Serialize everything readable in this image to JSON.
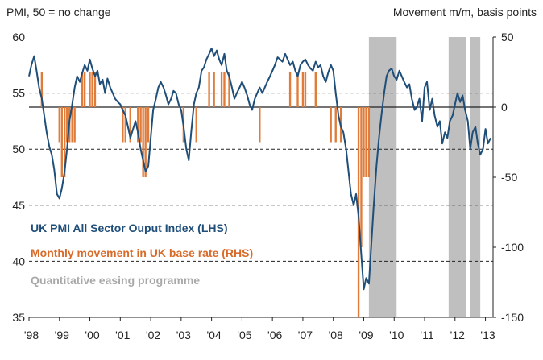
{
  "chart_data": {
    "type": "line",
    "left_axis_title": "PMI, 50 = no change",
    "right_axis_title": "Movement m/m, basis points",
    "left_ylim": [
      35,
      60
    ],
    "left_ticks": [
      "35",
      "40",
      "45",
      "50",
      "55",
      "60"
    ],
    "right_ylim": [
      -150,
      50
    ],
    "right_ticks": [
      "-150",
      "-100",
      "-50",
      "0",
      "50"
    ],
    "x_range": [
      1998.0,
      2013.25
    ],
    "x_ticks": [
      "'98",
      "'99",
      "'00",
      "'01",
      "'02",
      "'03",
      "'04",
      "'05",
      "'06",
      "'07",
      "'08",
      "'09",
      "'10",
      "'11",
      "'12",
      "'13"
    ],
    "gridlines_left": [
      40,
      45,
      50,
      55
    ],
    "zero_line_right": 0,
    "legend": {
      "items": [
        "UK PMI All Sector Ouput Index (LHS)",
        "Monthly movement in UK base rate (RHS)",
        "Quantitative easing programme"
      ]
    },
    "colors": {
      "pmi_line": "#1f4e79",
      "base_rate_bars": "#e07b39",
      "qe_shading": "#bfbfbf",
      "axis_text": "#222222",
      "legend_pmi": "#1f4e79",
      "legend_rate": "#d96b2a",
      "legend_qe": "#a8a8a8"
    },
    "qe_periods": [
      [
        2009.17,
        2010.08
      ],
      [
        2011.79,
        2012.35
      ],
      [
        2012.5,
        2012.83
      ]
    ],
    "series": [
      {
        "axis": "left",
        "points": [
          [
            1998.0,
            56.5
          ],
          [
            1998.08,
            57.5
          ],
          [
            1998.17,
            58.3
          ],
          [
            1998.25,
            57.0
          ],
          [
            1998.33,
            55.5
          ],
          [
            1998.42,
            54.5
          ],
          [
            1998.5,
            53.0
          ],
          [
            1998.58,
            51.5
          ],
          [
            1998.67,
            50.2
          ],
          [
            1998.75,
            49.5
          ],
          [
            1998.83,
            48.2
          ],
          [
            1998.92,
            46.0
          ],
          [
            1999.0,
            45.6
          ],
          [
            1999.08,
            46.5
          ],
          [
            1999.17,
            48.0
          ],
          [
            1999.25,
            50.0
          ],
          [
            1999.33,
            52.5
          ],
          [
            1999.42,
            54.0
          ],
          [
            1999.5,
            55.5
          ],
          [
            1999.58,
            56.5
          ],
          [
            1999.67,
            56.0
          ],
          [
            1999.75,
            56.8
          ],
          [
            1999.83,
            57.5
          ],
          [
            1999.92,
            57.0
          ],
          [
            2000.0,
            58.0
          ],
          [
            2000.08,
            57.2
          ],
          [
            2000.17,
            56.5
          ],
          [
            2000.25,
            57.0
          ],
          [
            2000.33,
            55.8
          ],
          [
            2000.42,
            56.2
          ],
          [
            2000.5,
            55.0
          ],
          [
            2000.58,
            56.3
          ],
          [
            2000.67,
            55.5
          ],
          [
            2000.75,
            55.0
          ],
          [
            2000.83,
            54.5
          ],
          [
            2000.92,
            54.2
          ],
          [
            2001.0,
            54.0
          ],
          [
            2001.08,
            53.5
          ],
          [
            2001.17,
            53.0
          ],
          [
            2001.25,
            52.0
          ],
          [
            2001.33,
            51.0
          ],
          [
            2001.42,
            51.8
          ],
          [
            2001.5,
            52.5
          ],
          [
            2001.58,
            51.5
          ],
          [
            2001.67,
            50.0
          ],
          [
            2001.75,
            49.0
          ],
          [
            2001.83,
            48.0
          ],
          [
            2001.92,
            48.5
          ],
          [
            2002.0,
            51.0
          ],
          [
            2002.08,
            53.5
          ],
          [
            2002.17,
            54.5
          ],
          [
            2002.25,
            55.5
          ],
          [
            2002.33,
            56.0
          ],
          [
            2002.42,
            55.5
          ],
          [
            2002.5,
            54.8
          ],
          [
            2002.58,
            54.0
          ],
          [
            2002.67,
            54.5
          ],
          [
            2002.75,
            55.2
          ],
          [
            2002.83,
            55.0
          ],
          [
            2002.92,
            54.0
          ],
          [
            2003.0,
            53.5
          ],
          [
            2003.08,
            52.0
          ],
          [
            2003.17,
            50.0
          ],
          [
            2003.25,
            49.0
          ],
          [
            2003.33,
            51.5
          ],
          [
            2003.42,
            54.0
          ],
          [
            2003.5,
            55.0
          ],
          [
            2003.58,
            55.5
          ],
          [
            2003.67,
            57.0
          ],
          [
            2003.75,
            57.3
          ],
          [
            2003.83,
            58.0
          ],
          [
            2003.92,
            58.5
          ],
          [
            2004.0,
            59.0
          ],
          [
            2004.08,
            58.3
          ],
          [
            2004.17,
            58.8
          ],
          [
            2004.25,
            58.0
          ],
          [
            2004.33,
            57.5
          ],
          [
            2004.42,
            58.5
          ],
          [
            2004.5,
            57.0
          ],
          [
            2004.58,
            56.5
          ],
          [
            2004.67,
            55.5
          ],
          [
            2004.75,
            54.5
          ],
          [
            2004.83,
            55.0
          ],
          [
            2004.92,
            55.5
          ],
          [
            2005.0,
            56.0
          ],
          [
            2005.08,
            55.5
          ],
          [
            2005.17,
            54.8
          ],
          [
            2005.25,
            54.0
          ],
          [
            2005.33,
            53.5
          ],
          [
            2005.42,
            54.5
          ],
          [
            2005.5,
            55.0
          ],
          [
            2005.58,
            55.5
          ],
          [
            2005.67,
            55.0
          ],
          [
            2005.75,
            55.5
          ],
          [
            2005.83,
            56.0
          ],
          [
            2005.92,
            56.5
          ],
          [
            2006.0,
            57.0
          ],
          [
            2006.08,
            57.5
          ],
          [
            2006.17,
            58.2
          ],
          [
            2006.25,
            58.0
          ],
          [
            2006.33,
            57.8
          ],
          [
            2006.42,
            58.5
          ],
          [
            2006.5,
            58.0
          ],
          [
            2006.58,
            57.5
          ],
          [
            2006.67,
            57.8
          ],
          [
            2006.75,
            57.0
          ],
          [
            2006.83,
            56.5
          ],
          [
            2006.92,
            57.5
          ],
          [
            2007.0,
            57.8
          ],
          [
            2007.08,
            58.0
          ],
          [
            2007.17,
            57.5
          ],
          [
            2007.25,
            57.2
          ],
          [
            2007.33,
            57.0
          ],
          [
            2007.42,
            57.8
          ],
          [
            2007.5,
            57.3
          ],
          [
            2007.58,
            57.5
          ],
          [
            2007.67,
            56.5
          ],
          [
            2007.75,
            56.0
          ],
          [
            2007.83,
            56.8
          ],
          [
            2007.92,
            57.5
          ],
          [
            2008.0,
            57.0
          ],
          [
            2008.08,
            55.0
          ],
          [
            2008.17,
            53.0
          ],
          [
            2008.25,
            52.0
          ],
          [
            2008.33,
            51.5
          ],
          [
            2008.42,
            50.0
          ],
          [
            2008.5,
            48.0
          ],
          [
            2008.58,
            46.0
          ],
          [
            2008.67,
            45.0
          ],
          [
            2008.75,
            46.0
          ],
          [
            2008.83,
            44.0
          ],
          [
            2008.92,
            40.5
          ],
          [
            2009.0,
            37.5
          ],
          [
            2009.08,
            38.5
          ],
          [
            2009.17,
            38.0
          ],
          [
            2009.25,
            41.5
          ],
          [
            2009.33,
            45.0
          ],
          [
            2009.42,
            48.5
          ],
          [
            2009.5,
            51.0
          ],
          [
            2009.58,
            53.0
          ],
          [
            2009.67,
            55.0
          ],
          [
            2009.75,
            56.5
          ],
          [
            2009.83,
            57.0
          ],
          [
            2009.92,
            57.2
          ],
          [
            2010.0,
            56.5
          ],
          [
            2010.08,
            56.2
          ],
          [
            2010.17,
            57.0
          ],
          [
            2010.25,
            56.5
          ],
          [
            2010.33,
            56.0
          ],
          [
            2010.42,
            55.5
          ],
          [
            2010.5,
            55.8
          ],
          [
            2010.58,
            54.5
          ],
          [
            2010.67,
            53.5
          ],
          [
            2010.75,
            53.8
          ],
          [
            2010.83,
            54.5
          ],
          [
            2010.92,
            52.5
          ],
          [
            2011.0,
            55.5
          ],
          [
            2011.08,
            56.0
          ],
          [
            2011.17,
            53.5
          ],
          [
            2011.25,
            54.5
          ],
          [
            2011.33,
            53.0
          ],
          [
            2011.42,
            52.0
          ],
          [
            2011.5,
            52.5
          ],
          [
            2011.58,
            50.5
          ],
          [
            2011.67,
            51.5
          ],
          [
            2011.75,
            51.0
          ],
          [
            2011.83,
            52.5
          ],
          [
            2011.92,
            53.0
          ],
          [
            2012.0,
            54.0
          ],
          [
            2012.08,
            55.0
          ],
          [
            2012.17,
            54.2
          ],
          [
            2012.25,
            54.8
          ],
          [
            2012.33,
            53.5
          ],
          [
            2012.42,
            52.5
          ],
          [
            2012.5,
            50.0
          ],
          [
            2012.58,
            51.5
          ],
          [
            2012.67,
            52.0
          ],
          [
            2012.75,
            50.5
          ],
          [
            2012.83,
            49.5
          ],
          [
            2012.92,
            50.0
          ],
          [
            2013.0,
            51.8
          ],
          [
            2013.08,
            50.5
          ],
          [
            2013.17,
            51.0
          ]
        ]
      },
      {
        "axis": "right",
        "bars": [
          [
            1998.42,
            25
          ],
          [
            1999.0,
            -25
          ],
          [
            1999.08,
            -50
          ],
          [
            1999.17,
            -50
          ],
          [
            1999.25,
            -25
          ],
          [
            1999.33,
            -25
          ],
          [
            1999.42,
            -25
          ],
          [
            1999.5,
            -25
          ],
          [
            1999.75,
            25
          ],
          [
            1999.83,
            25
          ],
          [
            2000.0,
            25
          ],
          [
            2000.08,
            25
          ],
          [
            2000.17,
            25
          ],
          [
            2001.08,
            -25
          ],
          [
            2001.17,
            -25
          ],
          [
            2001.33,
            -25
          ],
          [
            2001.58,
            -25
          ],
          [
            2001.67,
            -25
          ],
          [
            2001.75,
            -50
          ],
          [
            2001.83,
            -50
          ],
          [
            2001.92,
            -25
          ],
          [
            2003.08,
            -25
          ],
          [
            2003.5,
            -25
          ],
          [
            2003.92,
            25
          ],
          [
            2004.08,
            25
          ],
          [
            2004.33,
            25
          ],
          [
            2004.42,
            25
          ],
          [
            2004.58,
            25
          ],
          [
            2005.58,
            -25
          ],
          [
            2006.58,
            25
          ],
          [
            2006.83,
            25
          ],
          [
            2007.0,
            25
          ],
          [
            2007.08,
            25
          ],
          [
            2007.42,
            25
          ],
          [
            2007.92,
            -25
          ],
          [
            2008.08,
            -25
          ],
          [
            2008.25,
            -25
          ],
          [
            2008.83,
            -150
          ],
          [
            2008.92,
            -100
          ],
          [
            2009.0,
            -50
          ],
          [
            2009.08,
            -50
          ],
          [
            2009.17,
            -50
          ]
        ]
      }
    ]
  }
}
